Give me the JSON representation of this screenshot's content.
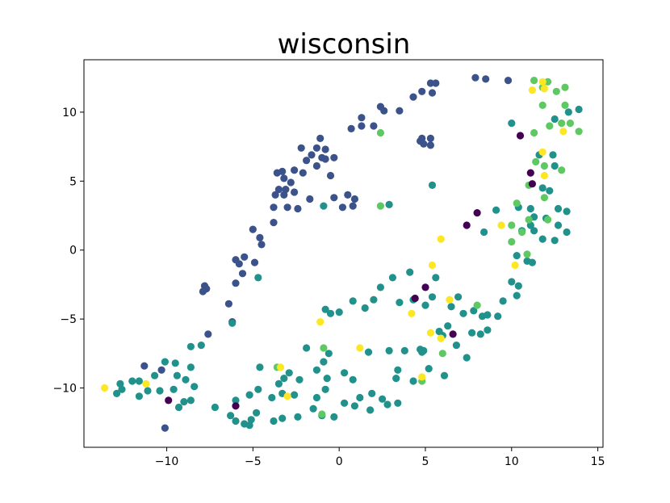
{
  "chart_data": {
    "type": "scatter",
    "title": "wisconsin",
    "xlabel": "",
    "ylabel": "",
    "xlim": [
      -14.8,
      15.3
    ],
    "ylim": [
      -14.3,
      13.8
    ],
    "xticks": [
      -10,
      -5,
      0,
      5,
      10,
      15
    ],
    "yticks": [
      -10,
      -5,
      0,
      5,
      10
    ],
    "xtick_labels": [
      "−10",
      "−5",
      "0",
      "5",
      "10",
      "15"
    ],
    "ytick_labels": [
      "−10",
      "−5",
      "0",
      "5",
      "10"
    ],
    "grid": false,
    "legend": "none",
    "colors": {
      "c0": "#440154",
      "c1": "#3b528b",
      "c2": "#21918c",
      "c3": "#5ec962",
      "c4": "#fde725"
    },
    "points": [
      [
        "c1",
        7.9,
        12.5
      ],
      [
        "c1",
        8.5,
        12.4
      ],
      [
        "c1",
        9.8,
        12.3
      ],
      [
        "c1",
        5.3,
        12.1
      ],
      [
        "c1",
        5.6,
        12.1
      ],
      [
        "c1",
        4.8,
        11.5
      ],
      [
        "c1",
        5.4,
        11.4
      ],
      [
        "c1",
        4.3,
        11.1
      ],
      [
        "c1",
        2.4,
        10.4
      ],
      [
        "c1",
        2.6,
        10.1
      ],
      [
        "c1",
        3.5,
        10.1
      ],
      [
        "c1",
        1.3,
        9.6
      ],
      [
        "c1",
        1.3,
        9.0
      ],
      [
        "c1",
        2.0,
        9.0
      ],
      [
        "c1",
        0.7,
        8.8
      ],
      [
        "c1",
        4.7,
        7.9
      ],
      [
        "c1",
        4.8,
        8.1
      ],
      [
        "c1",
        4.9,
        7.7
      ],
      [
        "c1",
        5.3,
        8.1
      ],
      [
        "c1",
        5.3,
        7.6
      ],
      [
        "c1",
        -1.1,
        8.1
      ],
      [
        "c1",
        -2.2,
        7.4
      ],
      [
        "c1",
        -1.3,
        7.4
      ],
      [
        "c1",
        -0.8,
        7.3
      ],
      [
        "c1",
        -1.6,
        6.9
      ],
      [
        "c1",
        -1.0,
        6.7
      ],
      [
        "c1",
        -0.8,
        6.6
      ],
      [
        "c1",
        -1.9,
        6.5
      ],
      [
        "c1",
        -0.3,
        6.7
      ],
      [
        "c1",
        -1.3,
        6.1
      ],
      [
        "c1",
        -2.6,
        5.8
      ],
      [
        "c1",
        -3.6,
        5.6
      ],
      [
        "c1",
        -3.3,
        5.7
      ],
      [
        "c1",
        -2.1,
        5.6
      ],
      [
        "c1",
        -0.5,
        5.4
      ],
      [
        "c1",
        -3.2,
        5.2
      ],
      [
        "c1",
        -2.8,
        4.9
      ],
      [
        "c1",
        -3.5,
        4.4
      ],
      [
        "c1",
        -3.1,
        4.4
      ],
      [
        "c1",
        -3.7,
        4.0
      ],
      [
        "c1",
        -3.2,
        4.0
      ],
      [
        "c1",
        -2.6,
        4.2
      ],
      [
        "c1",
        -1.7,
        3.7
      ],
      [
        "c1",
        -0.3,
        3.8
      ],
      [
        "c1",
        0.5,
        4.0
      ],
      [
        "c1",
        0.9,
        3.7
      ],
      [
        "c1",
        -3.8,
        3.1
      ],
      [
        "c1",
        -3.0,
        3.1
      ],
      [
        "c1",
        -2.4,
        3.0
      ],
      [
        "c1",
        0.2,
        3.1
      ],
      [
        "c1",
        0.8,
        3.2
      ],
      [
        "c1",
        -3.8,
        2.0
      ],
      [
        "c1",
        -5.0,
        1.5
      ],
      [
        "c1",
        -4.6,
        0.9
      ],
      [
        "c1",
        -4.5,
        0.4
      ],
      [
        "c1",
        -5.5,
        -0.5
      ],
      [
        "c1",
        -5.8,
        -1.0
      ],
      [
        "c1",
        -6.0,
        -0.7
      ],
      [
        "c1",
        -4.9,
        -0.9
      ],
      [
        "c1",
        -5.6,
        -1.7
      ],
      [
        "c1",
        -6.0,
        -2.4
      ],
      [
        "c1",
        -7.8,
        -2.6
      ],
      [
        "c1",
        -7.7,
        -2.8
      ],
      [
        "c1",
        -7.9,
        -3.0
      ],
      [
        "c1",
        -6.4,
        -3.9
      ],
      [
        "c1",
        -6.2,
        -5.2
      ],
      [
        "c1",
        -7.6,
        -6.1
      ],
      [
        "c1",
        -11.3,
        -8.4
      ],
      [
        "c1",
        -10.3,
        -8.7
      ],
      [
        "c1",
        -10.1,
        -12.9
      ],
      [
        "c2",
        12.5,
        9.5
      ],
      [
        "c2",
        13.3,
        10.0
      ],
      [
        "c2",
        13.9,
        10.2
      ],
      [
        "c2",
        11.6,
        6.9
      ],
      [
        "c2",
        12.4,
        6.9
      ],
      [
        "c2",
        12.5,
        6.1
      ],
      [
        "c2",
        11.8,
        4.5
      ],
      [
        "c2",
        12.2,
        4.3
      ],
      [
        "c2",
        10.4,
        3.1
      ],
      [
        "c2",
        11.1,
        3.0
      ],
      [
        "c2",
        12.7,
        3.0
      ],
      [
        "c2",
        13.2,
        2.8
      ],
      [
        "c2",
        9.1,
        2.9
      ],
      [
        "c2",
        11.3,
        2.4
      ],
      [
        "c2",
        11.1,
        1.8
      ],
      [
        "c2",
        12.0,
        2.3
      ],
      [
        "c2",
        12.7,
        1.8
      ],
      [
        "c2",
        10.6,
        1.4
      ],
      [
        "c2",
        11.3,
        1.4
      ],
      [
        "c2",
        13.2,
        1.3
      ],
      [
        "c2",
        8.4,
        1.3
      ],
      [
        "c2",
        11.8,
        0.8
      ],
      [
        "c2",
        12.5,
        0.7
      ],
      [
        "c2",
        10.3,
        -0.4
      ],
      [
        "c2",
        10.9,
        -0.8
      ],
      [
        "c2",
        11.2,
        -0.9
      ],
      [
        "c2",
        10.4,
        -2.6
      ],
      [
        "c2",
        10.0,
        -2.3
      ],
      [
        "c2",
        10.3,
        -3.3
      ],
      [
        "c2",
        9.5,
        -3.7
      ],
      [
        "c2",
        4.1,
        -1.6
      ],
      [
        "c2",
        3.1,
        -2.0
      ],
      [
        "c2",
        5.6,
        -2.0
      ],
      [
        "c2",
        2.4,
        -2.7
      ],
      [
        "c2",
        3.5,
        -3.8
      ],
      [
        "c2",
        2.0,
        -3.6
      ],
      [
        "c2",
        1.5,
        -4.2
      ],
      [
        "c2",
        0.8,
        -3.7
      ],
      [
        "c2",
        -0.8,
        -4.3
      ],
      [
        "c2",
        -0.5,
        -4.6
      ],
      [
        "c2",
        0.0,
        -4.5
      ],
      [
        "c2",
        4.3,
        -3.6
      ],
      [
        "c2",
        5.0,
        -4.0
      ],
      [
        "c2",
        5.4,
        -3.4
      ],
      [
        "c2",
        6.9,
        -3.4
      ],
      [
        "c2",
        6.5,
        -4.1
      ],
      [
        "c2",
        7.2,
        -4.6
      ],
      [
        "c2",
        7.8,
        -4.4
      ],
      [
        "c2",
        8.3,
        -4.8
      ],
      [
        "c2",
        8.6,
        -4.7
      ],
      [
        "c2",
        9.2,
        -4.8
      ],
      [
        "c2",
        7.7,
        -6.0
      ],
      [
        "c2",
        8.2,
        -6.1
      ],
      [
        "c2",
        8.6,
        -5.8
      ],
      [
        "c2",
        6.3,
        -5.5
      ],
      [
        "c2",
        6.0,
        -6.2
      ],
      [
        "c2",
        5.8,
        -5.9
      ],
      [
        "c2",
        6.8,
        -6.9
      ],
      [
        "c2",
        7.4,
        -7.8
      ],
      [
        "c2",
        6.1,
        -9.1
      ],
      [
        "c2",
        4.8,
        -7.4
      ],
      [
        "c2",
        4.9,
        -7.3
      ],
      [
        "c2",
        4.7,
        -7.2
      ],
      [
        "c2",
        3.8,
        -7.3
      ],
      [
        "c2",
        2.9,
        -7.3
      ],
      [
        "c2",
        1.7,
        -7.4
      ],
      [
        "c2",
        -1.9,
        -7.1
      ],
      [
        "c2",
        -0.6,
        -7.5
      ],
      [
        "c2",
        -0.9,
        -8.1
      ],
      [
        "c2",
        -1.3,
        -8.7
      ],
      [
        "c2",
        5.2,
        -8.6
      ],
      [
        "c2",
        3.4,
        -8.7
      ],
      [
        "c2",
        3.3,
        -9.3
      ],
      [
        "c2",
        4.3,
        -9.5
      ],
      [
        "c2",
        0.3,
        -8.9
      ],
      [
        "c2",
        -0.7,
        -9.3
      ],
      [
        "c2",
        0.8,
        -9.4
      ],
      [
        "c2",
        -2.3,
        -9.4
      ],
      [
        "c2",
        -3.2,
        -9.3
      ],
      [
        "c2",
        -2.9,
        -8.9
      ],
      [
        "c2",
        -4.6,
        -8.5
      ],
      [
        "c2",
        -3.5,
        -9.7
      ],
      [
        "c2",
        -3.3,
        -10.4
      ],
      [
        "c2",
        -0.8,
        -10.1
      ],
      [
        "c2",
        -1.3,
        -10.7
      ],
      [
        "c2",
        -2.6,
        -10.5
      ],
      [
        "c2",
        -3.9,
        -10.7
      ],
      [
        "c2",
        -4.7,
        -10.1
      ],
      [
        "c2",
        -5.2,
        -10.5
      ],
      [
        "c2",
        -6.0,
        -10.9
      ],
      [
        "c2",
        1.9,
        -10.4
      ],
      [
        "c2",
        2.5,
        -10.8
      ],
      [
        "c2",
        1.2,
        -10.7
      ],
      [
        "c2",
        0.3,
        -11.1
      ],
      [
        "c2",
        0.9,
        -11.3
      ],
      [
        "c2",
        2.8,
        -11.2
      ],
      [
        "c2",
        3.4,
        -11.1
      ],
      [
        "c2",
        1.8,
        -11.6
      ],
      [
        "c2",
        -1.5,
        -11.5
      ],
      [
        "c2",
        -1.0,
        -12.0
      ],
      [
        "c2",
        -0.3,
        -12.1
      ],
      [
        "c2",
        -2.4,
        -12.1
      ],
      [
        "c2",
        -3.3,
        -12.2
      ],
      [
        "c2",
        -3.8,
        -12.4
      ],
      [
        "c2",
        -4.8,
        -11.8
      ],
      [
        "c2",
        -5.1,
        -12.3
      ],
      [
        "c2",
        -5.5,
        -12.6
      ],
      [
        "c2",
        -5.2,
        -12.7
      ],
      [
        "c2",
        -6.0,
        -12.4
      ],
      [
        "c2",
        -6.3,
        -12.0
      ],
      [
        "c2",
        -7.2,
        -11.4
      ],
      [
        "c2",
        -10.1,
        -8.1
      ],
      [
        "c2",
        -9.5,
        -8.2
      ],
      [
        "c2",
        -8.6,
        -7.0
      ],
      [
        "c2",
        -8.0,
        -6.9
      ],
      [
        "c2",
        -8.6,
        -8.5
      ],
      [
        "c2",
        -9.4,
        -9.1
      ],
      [
        "c2",
        -8.9,
        -9.4
      ],
      [
        "c2",
        -8.4,
        -9.9
      ],
      [
        "c2",
        -9.6,
        -10.1
      ],
      [
        "c2",
        -10.4,
        -10.2
      ],
      [
        "c2",
        -11.1,
        -10.2
      ],
      [
        "c2",
        -11.6,
        -9.5
      ],
      [
        "c2",
        -12.0,
        -9.5
      ],
      [
        "c2",
        -12.7,
        -9.7
      ],
      [
        "c2",
        -12.9,
        -10.4
      ],
      [
        "c2",
        -12.6,
        -10.1
      ],
      [
        "c2",
        -11.6,
        -10.6
      ],
      [
        "c2",
        -9.0,
        -11.0
      ],
      [
        "c2",
        -9.3,
        -11.4
      ],
      [
        "c2",
        -8.6,
        -10.9
      ],
      [
        "c2",
        -10.7,
        -9.1
      ],
      [
        "c2",
        -6.2,
        -5.3
      ],
      [
        "c2",
        -4.7,
        -2.0
      ],
      [
        "c2",
        -0.9,
        3.2
      ],
      [
        "c2",
        2.9,
        3.3
      ],
      [
        "c2",
        5.4,
        4.7
      ],
      [
        "c2",
        10.0,
        9.2
      ],
      [
        "c3",
        11.3,
        12.3
      ],
      [
        "c3",
        12.1,
        12.2
      ],
      [
        "c3",
        11.8,
        11.8
      ],
      [
        "c3",
        13.1,
        11.8
      ],
      [
        "c3",
        12.6,
        11.5
      ],
      [
        "c3",
        11.8,
        10.5
      ],
      [
        "c3",
        13.1,
        10.5
      ],
      [
        "c3",
        12.9,
        9.2
      ],
      [
        "c3",
        13.4,
        9.2
      ],
      [
        "c3",
        12.2,
        9.0
      ],
      [
        "c3",
        13.9,
        8.6
      ],
      [
        "c3",
        11.3,
        8.5
      ],
      [
        "c3",
        11.4,
        6.4
      ],
      [
        "c3",
        11.9,
        6.1
      ],
      [
        "c3",
        12.9,
        5.8
      ],
      [
        "c3",
        11.0,
        4.7
      ],
      [
        "c3",
        11.9,
        3.8
      ],
      [
        "c3",
        10.3,
        3.4
      ],
      [
        "c3",
        11.0,
        2.2
      ],
      [
        "c3",
        12.1,
        2.2
      ],
      [
        "c3",
        10.0,
        1.8
      ],
      [
        "c3",
        10.6,
        1.3
      ],
      [
        "c3",
        10.0,
        0.6
      ],
      [
        "c3",
        10.9,
        -0.3
      ],
      [
        "c3",
        8.0,
        -4.0
      ],
      [
        "c3",
        6.0,
        -7.5
      ],
      [
        "c3",
        4.8,
        -9.5
      ],
      [
        "c3",
        -3.6,
        -8.5
      ],
      [
        "c3",
        -0.9,
        -7.1
      ],
      [
        "c3",
        -1.0,
        -11.9
      ],
      [
        "c3",
        2.4,
        3.2
      ],
      [
        "c3",
        2.4,
        8.5
      ],
      [
        "c4",
        11.8,
        12.2
      ],
      [
        "c4",
        11.9,
        11.7
      ],
      [
        "c4",
        11.2,
        11.6
      ],
      [
        "c4",
        13.0,
        8.6
      ],
      [
        "c4",
        11.8,
        7.1
      ],
      [
        "c4",
        11.9,
        5.4
      ],
      [
        "c4",
        9.4,
        1.8
      ],
      [
        "c4",
        5.9,
        0.8
      ],
      [
        "c4",
        5.4,
        -1.1
      ],
      [
        "c4",
        10.2,
        -1.1
      ],
      [
        "c4",
        6.4,
        -3.6
      ],
      [
        "c4",
        4.2,
        -4.6
      ],
      [
        "c4",
        -1.1,
        -5.2
      ],
      [
        "c4",
        5.3,
        -6.0
      ],
      [
        "c4",
        5.9,
        -6.4
      ],
      [
        "c4",
        1.2,
        -7.1
      ],
      [
        "c4",
        -3.4,
        -8.5
      ],
      [
        "c4",
        4.8,
        -9.2
      ],
      [
        "c4",
        -3.0,
        -10.6
      ],
      [
        "c4",
        -11.2,
        -9.7
      ],
      [
        "c4",
        -13.6,
        -10.0
      ],
      [
        "c0",
        10.5,
        8.3
      ],
      [
        "c0",
        11.1,
        5.6
      ],
      [
        "c0",
        11.2,
        4.8
      ],
      [
        "c0",
        8.0,
        2.7
      ],
      [
        "c0",
        7.4,
        1.8
      ],
      [
        "c0",
        5.0,
        -2.7
      ],
      [
        "c0",
        4.4,
        -3.5
      ],
      [
        "c0",
        6.6,
        -6.1
      ],
      [
        "c0",
        -9.9,
        -10.9
      ],
      [
        "c0",
        -6.0,
        -11.3
      ]
    ]
  }
}
